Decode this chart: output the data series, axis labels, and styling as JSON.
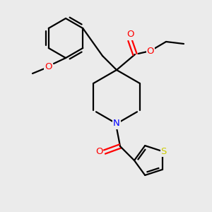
{
  "background_color": "#ebebeb",
  "bond_color": "#000000",
  "atom_colors": {
    "O": "#ff0000",
    "N": "#0000ff",
    "S": "#cccc00",
    "C": "#000000"
  },
  "lw": 1.6,
  "fs": 9.5
}
